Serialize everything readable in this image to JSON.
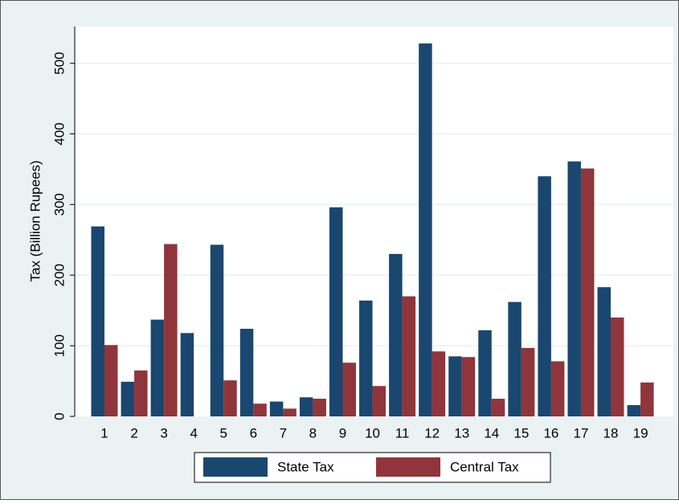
{
  "chart_data": {
    "type": "bar",
    "categories": [
      "1",
      "2",
      "3",
      "4",
      "5",
      "6",
      "7",
      "8",
      "9",
      "10",
      "11",
      "12",
      "13",
      "14",
      "15",
      "16",
      "17",
      "18",
      "19"
    ],
    "series": [
      {
        "name": "State Tax",
        "color": "#1a476f",
        "values": [
          269,
          49,
          137,
          118,
          243,
          124,
          21,
          27,
          296,
          164,
          230,
          528,
          85,
          122,
          162,
          340,
          361,
          183,
          16
        ]
      },
      {
        "name": "Central Tax",
        "color": "#90353b",
        "values": [
          101,
          65,
          244,
          0,
          51,
          18,
          11,
          25,
          76,
          43,
          170,
          92,
          84,
          25,
          97,
          78,
          351,
          140,
          48
        ]
      }
    ],
    "y_label": "Tax (Billion Rupees)",
    "ylim": [
      0,
      552
    ],
    "yticks": [
      0,
      100,
      200,
      300,
      400,
      500
    ],
    "grid": true,
    "legend": "bottom"
  }
}
